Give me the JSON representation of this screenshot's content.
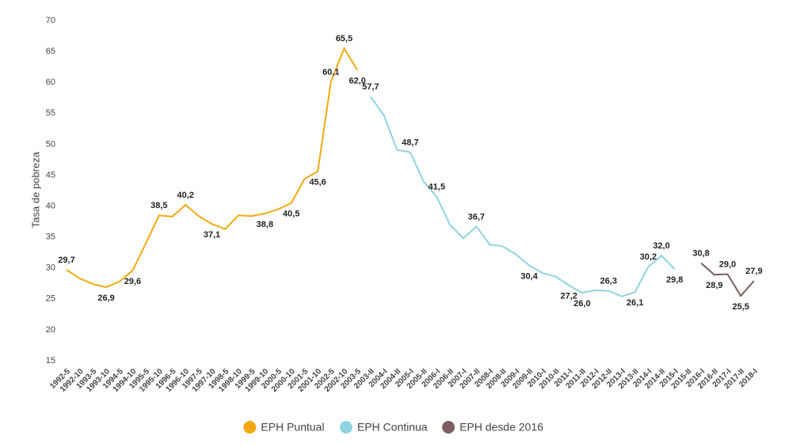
{
  "chart_data": {
    "type": "line",
    "y_label": "Tasa de pobreza",
    "categories": [
      "1992-5",
      "1992-10",
      "1993-5",
      "1993-10",
      "1994-5",
      "1994-10",
      "1995-5",
      "1995-10",
      "1996-5",
      "1996-10",
      "1997-5",
      "1997-10",
      "1998-5",
      "1998-10",
      "1999-5",
      "1999-10",
      "2000-5",
      "2000-10",
      "2001-5",
      "2001-10",
      "2002-5",
      "2002-10",
      "2003-5",
      "2003-II",
      "2004-I",
      "2004-II",
      "2005-I",
      "2005-II",
      "2006-I",
      "2006-II",
      "2007-I",
      "2007-II",
      "2008-I",
      "2008-II",
      "2009-I",
      "2009-II",
      "2010-I",
      "2010-II",
      "2011-I",
      "2011-II",
      "2012-I",
      "2012-II",
      "2013-I",
      "2013-II",
      "2014-I",
      "2014-II",
      "2015-I",
      "2015-II",
      "2016-I",
      "2016-II",
      "2017-I",
      "2017-II",
      "2018-I"
    ],
    "series": [
      {
        "name": "EPH Puntual",
        "color": "#f2a90f",
        "values": [
          29.7,
          28.3,
          27.4,
          26.9,
          27.8,
          29.6,
          34.0,
          38.5,
          38.3,
          40.2,
          38.4,
          37.1,
          36.3,
          38.5,
          38.4,
          38.8,
          39.5,
          40.5,
          44.4,
          45.6,
          60.1,
          65.5,
          62.0,
          null,
          null,
          null,
          null,
          null,
          null,
          null,
          null,
          null,
          null,
          null,
          null,
          null,
          null,
          null,
          null,
          null,
          null,
          null,
          null,
          null,
          null,
          null,
          null,
          null,
          null,
          null,
          null,
          null,
          null
        ],
        "value_labels": [
          "29,7",
          null,
          null,
          "26,9",
          null,
          "29,6",
          null,
          "38,5",
          null,
          "40,2",
          null,
          "37,1",
          null,
          null,
          null,
          "38,8",
          null,
          "40,5",
          null,
          "45,6",
          "60,1",
          "65,5",
          "62,0",
          null,
          null,
          null,
          null,
          null,
          null,
          null,
          null,
          null,
          null,
          null,
          null,
          null,
          null,
          null,
          null,
          null,
          null,
          null,
          null,
          null,
          null,
          null,
          null,
          null,
          null,
          null,
          null,
          null,
          null
        ]
      },
      {
        "name": "EPH Continua",
        "color": "#8fd3e0",
        "values": [
          null,
          null,
          null,
          null,
          null,
          null,
          null,
          null,
          null,
          null,
          null,
          null,
          null,
          null,
          null,
          null,
          null,
          null,
          null,
          null,
          null,
          null,
          null,
          57.7,
          54.7,
          49.1,
          48.7,
          44.0,
          41.5,
          37.0,
          34.8,
          36.7,
          33.8,
          33.5,
          32.2,
          30.4,
          29.2,
          28.6,
          27.2,
          26.0,
          26.4,
          26.3,
          25.4,
          26.1,
          30.2,
          32.0,
          29.8,
          null,
          null,
          null,
          null,
          null,
          null
        ],
        "value_labels": [
          null,
          null,
          null,
          null,
          null,
          null,
          null,
          null,
          null,
          null,
          null,
          null,
          null,
          null,
          null,
          null,
          null,
          null,
          null,
          null,
          null,
          null,
          null,
          "57,7",
          null,
          null,
          "48,7",
          null,
          "41,5",
          null,
          null,
          "36,7",
          null,
          null,
          null,
          "30,4",
          null,
          null,
          "27,2",
          "26,0",
          null,
          "26,3",
          null,
          "26,1",
          "30,2",
          "32,0",
          "29,8",
          null,
          null,
          null,
          null,
          null,
          null
        ]
      },
      {
        "name": "EPH desde 2016",
        "color": "#7d5e60",
        "values": [
          null,
          null,
          null,
          null,
          null,
          null,
          null,
          null,
          null,
          null,
          null,
          null,
          null,
          null,
          null,
          null,
          null,
          null,
          null,
          null,
          null,
          null,
          null,
          null,
          null,
          null,
          null,
          null,
          null,
          null,
          null,
          null,
          null,
          null,
          null,
          null,
          null,
          null,
          null,
          null,
          null,
          null,
          null,
          null,
          null,
          null,
          null,
          null,
          30.8,
          28.9,
          29.0,
          25.5,
          27.9
        ],
        "value_labels": [
          null,
          null,
          null,
          null,
          null,
          null,
          null,
          null,
          null,
          null,
          null,
          null,
          null,
          null,
          null,
          null,
          null,
          null,
          null,
          null,
          null,
          null,
          null,
          null,
          null,
          null,
          null,
          null,
          null,
          null,
          null,
          null,
          null,
          null,
          null,
          null,
          null,
          null,
          null,
          null,
          null,
          null,
          null,
          null,
          null,
          null,
          null,
          null,
          "30,8",
          "28,9",
          "29,0",
          "25,5",
          "27,9"
        ]
      }
    ],
    "ylim": [
      15,
      70
    ],
    "yticks": [
      15,
      20,
      25,
      30,
      35,
      40,
      45,
      50,
      55,
      60,
      65,
      70
    ],
    "grid": false,
    "legend": "bottom"
  }
}
